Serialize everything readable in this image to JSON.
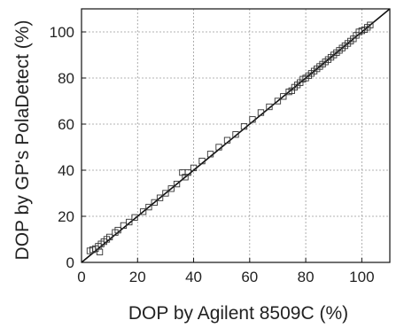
{
  "chart_data": {
    "type": "scatter",
    "title": "",
    "xlabel": "DOP by Agilent 8509C (%)",
    "ylabel": "DOP by GP's PolaDetect (%)",
    "xlim": [
      0,
      110
    ],
    "ylim": [
      0,
      110
    ],
    "xticks": [
      0,
      20,
      40,
      60,
      80,
      100
    ],
    "yticks": [
      0,
      20,
      40,
      60,
      80,
      100
    ],
    "grid": true,
    "marker": "open-square",
    "series": [
      {
        "x": [
          3,
          4,
          5,
          6,
          6.5,
          7,
          8,
          9,
          10,
          12,
          13,
          15,
          17,
          19,
          22,
          24,
          26,
          28,
          30,
          32,
          34,
          36,
          37,
          38,
          40,
          43,
          46,
          49,
          52,
          55,
          58,
          61,
          64,
          67,
          70,
          72,
          74,
          75,
          76,
          77,
          78,
          79,
          80,
          81,
          82,
          83,
          84,
          85,
          86,
          87,
          88,
          89,
          90,
          91,
          92,
          93,
          94,
          95,
          96,
          97,
          98,
          99,
          100,
          101,
          102,
          103
        ],
        "y": [
          5,
          5.5,
          6,
          7,
          4.5,
          8,
          9,
          10,
          11,
          13,
          14,
          16,
          17.5,
          19.5,
          22,
          24,
          26,
          28,
          30,
          32,
          34,
          39,
          37,
          39,
          41,
          44,
          47,
          50,
          53,
          55.5,
          59,
          62,
          65,
          67.5,
          70,
          72,
          74,
          74.5,
          76,
          77,
          78,
          79.5,
          80,
          81,
          82,
          83,
          84,
          85,
          86,
          87,
          88,
          89,
          90,
          91,
          92,
          93,
          94,
          95,
          96,
          97,
          98.5,
          100,
          100.5,
          101,
          102,
          103
        ]
      }
    ],
    "reference_line": {
      "type": "y=x",
      "from": 0,
      "to": 110
    }
  }
}
